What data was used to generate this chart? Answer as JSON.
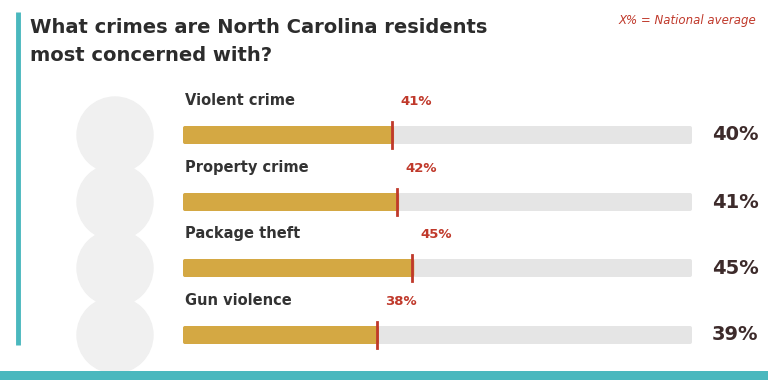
{
  "title_line1": "What crimes are North Carolina residents",
  "title_line2": "most concerned with?",
  "legend_text": "X% = National average",
  "background_color": "#ffffff",
  "bar_bg_color": "#e5e5e5",
  "bar_fill_color": "#D4A843",
  "marker_color": "#c0392b",
  "title_color": "#2c2c2c",
  "legend_color": "#c0392b",
  "value_color": "#c0392b",
  "national_avg_color": "#3d2b2b",
  "teal_color": "#4ab8be",
  "categories": [
    "Violent crime",
    "Property crime",
    "Package theft",
    "Gun violence"
  ],
  "nc_values": [
    41,
    42,
    45,
    38
  ],
  "national_values": [
    40,
    41,
    45,
    39
  ],
  "bar_max": 100
}
